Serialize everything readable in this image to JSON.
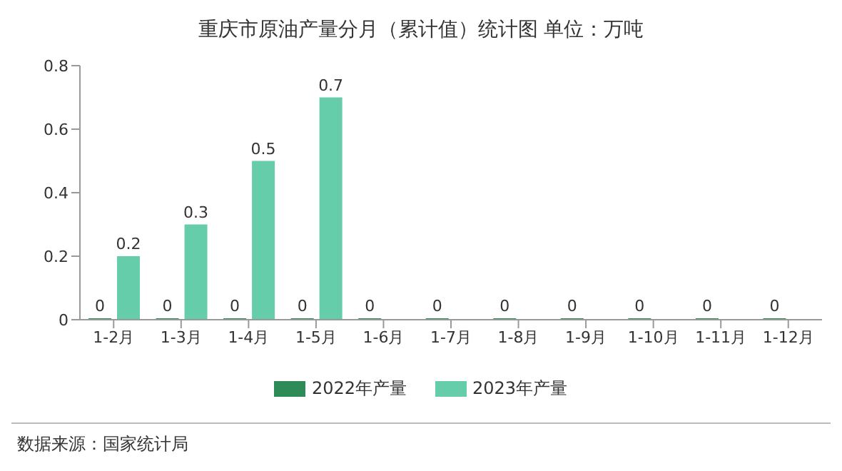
{
  "chart_data": {
    "type": "bar",
    "title": "重庆市原油产量分月（累计值）统计图 单位：万吨",
    "categories": [
      "1-2月",
      "1-3月",
      "1-4月",
      "1-5月",
      "1-6月",
      "1-7月",
      "1-8月",
      "1-9月",
      "1-10月",
      "1-11月",
      "1-12月"
    ],
    "series": [
      {
        "name": "2022年产量",
        "color": "#2e8b57",
        "values": [
          0,
          0,
          0,
          0,
          0,
          0,
          0,
          0,
          0,
          0,
          0
        ]
      },
      {
        "name": "2023年产量",
        "color": "#66cdaa",
        "values": [
          0.2,
          0.3,
          0.5,
          0.7,
          null,
          null,
          null,
          null,
          null,
          null,
          null
        ]
      }
    ],
    "ylim": [
      0,
      0.8
    ],
    "yticks": [
      0,
      0.2,
      0.4,
      0.6,
      0.8
    ],
    "grid": false,
    "legend": "bottom",
    "data_labels": true,
    "annotations": [
      "数据来源：国家统计局"
    ]
  }
}
